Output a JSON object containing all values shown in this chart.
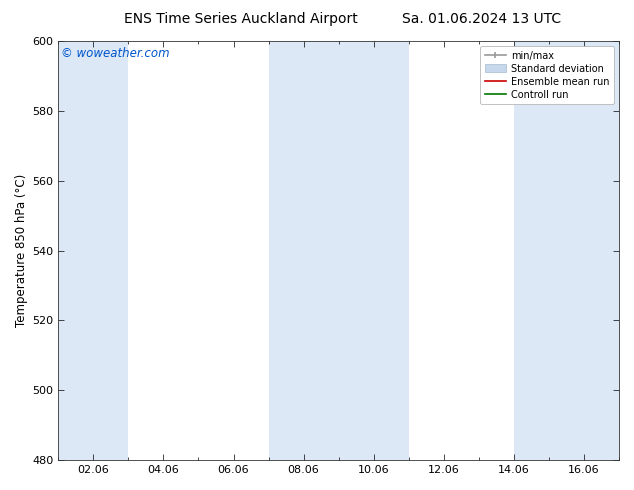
{
  "title_left": "ENS Time Series Auckland Airport",
  "title_right": "Sa. 01.06.2024 13 UTC",
  "ylabel": "Temperature 850 hPa (°C)",
  "ylim": [
    480,
    600
  ],
  "yticks": [
    480,
    500,
    520,
    540,
    560,
    580,
    600
  ],
  "xtick_labels": [
    "02.06",
    "04.06",
    "06.06",
    "08.06",
    "10.06",
    "12.06",
    "14.06",
    "16.06"
  ],
  "xtick_positions": [
    2,
    4,
    6,
    8,
    10,
    12,
    14,
    16
  ],
  "xlim": [
    1,
    17
  ],
  "watermark": "© woweather.com",
  "watermark_color": "#0055cc",
  "bg_color": "#ffffff",
  "plot_bg_color": "#ffffff",
  "shaded_bands": [
    {
      "x_start": 1,
      "x_end": 3,
      "color": "#dce8f5"
    },
    {
      "x_start": 7,
      "x_end": 11,
      "color": "#dce8f5"
    },
    {
      "x_start": 14,
      "x_end": 17,
      "color": "#dce8f5"
    }
  ],
  "legend_items": [
    {
      "label": "min/max",
      "color": "#999999",
      "type": "errorbar"
    },
    {
      "label": "Standard deviation",
      "color": "#c5d8ec",
      "type": "box"
    },
    {
      "label": "Ensemble mean run",
      "color": "#cc0000",
      "type": "line"
    },
    {
      "label": "Controll run",
      "color": "#007700",
      "type": "line"
    }
  ],
  "title_fontsize": 10,
  "tick_fontsize": 8,
  "label_fontsize": 8.5,
  "watermark_fontsize": 8.5
}
